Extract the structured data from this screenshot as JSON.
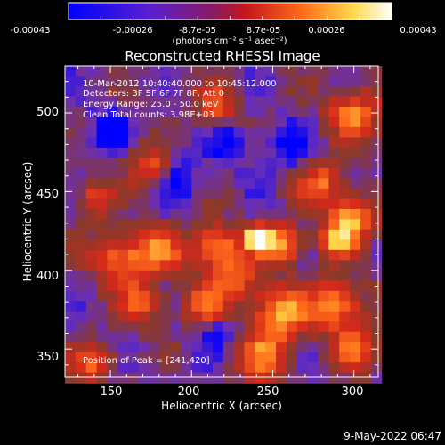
{
  "colorbar": {
    "tick_labels": [
      "-0.00043",
      "-0.00026",
      "-8.7e-05",
      "8.7e-05",
      "0.00026",
      "0.00043"
    ],
    "units": "(photons cm⁻² s⁻¹ asec⁻²)",
    "range": [
      -0.00043,
      0.00043
    ]
  },
  "chart_data": {
    "type": "heatmap",
    "title": "Reconstructed RHESSI Image",
    "xlabel": "Heliocentric X (arcsec)",
    "ylabel": "Heliocentric Y (arcsec)",
    "xlim": [
      122,
      315
    ],
    "ylim": [
      332,
      530
    ],
    "x_ticks": [
      150,
      200,
      250,
      300
    ],
    "y_ticks": [
      350,
      400,
      450,
      500
    ],
    "x_tick_labels": [
      "150",
      "200",
      "250",
      "300"
    ],
    "y_tick_labels": [
      "350",
      "400",
      "450",
      "500"
    ],
    "annotations": [
      "10-Mar-2012 10:40:40.000 to 10:45:12.000",
      "Detectors: 3F 5F 6F 7F 8F, Att 0",
      "Energy Range: 25.0 - 50.0 keV",
      "Clean     Total counts: 3.98E+03"
    ],
    "peak_label": "Position of Peak = [241,420]",
    "peak": [
      241,
      420
    ],
    "colormap_stops": [
      "#0000ff",
      "#6a2fb8",
      "#8a3a2a",
      "#d2281b",
      "#ff6b1a",
      "#ffd84a",
      "#ffffff"
    ]
  },
  "footer_date": "9-May-2022 06:47"
}
